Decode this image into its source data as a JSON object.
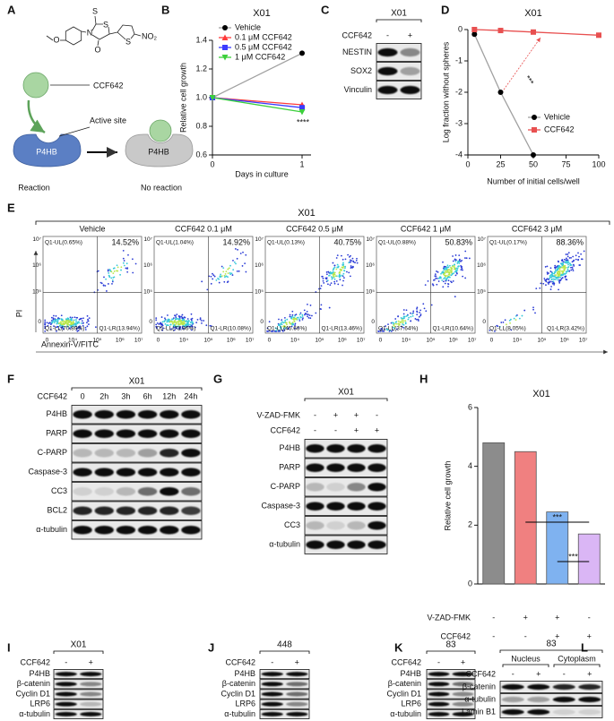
{
  "panel_labels": [
    "A",
    "B",
    "C",
    "D",
    "E",
    "F",
    "G",
    "H",
    "I",
    "J",
    "K",
    "L"
  ],
  "schematic": {
    "compound": "CCF642",
    "atoms": [
      "O",
      "N",
      "S",
      "S",
      "O",
      "S",
      "NO₂"
    ],
    "site": "Active site",
    "protein_left": "P4HB",
    "protein_right": "P4HB",
    "caption_left": "Reaction",
    "caption_right": "No reaction"
  },
  "chart_data": [
    {
      "type": "line",
      "title": "X01",
      "x_label": "Days in culture",
      "y_label": "Relative cell growth",
      "x": [
        0,
        1
      ],
      "xlim": [
        0,
        1.1
      ],
      "xticks": [
        0,
        1
      ],
      "ylim": [
        0.6,
        1.4
      ],
      "yticks": [
        0.6,
        0.8,
        {
          "value": 1,
          "label": "1.0"
        },
        1.2,
        1.4
      ],
      "legend": "upper left",
      "annotation": "****",
      "series": [
        {
          "name": "Vehicle",
          "color": "#000000",
          "line_color": "#a0a0a0",
          "marker": "circle",
          "values": [
            1,
            1.31
          ]
        },
        {
          "name": "0.1 μM CCF642",
          "color": "#ff3b3b",
          "marker": "triangle",
          "values": [
            1,
            0.95
          ]
        },
        {
          "name": "0.5 μM CCF642",
          "color": "#3b3bff",
          "marker": "square",
          "values": [
            1,
            0.93
          ]
        },
        {
          "name": "1 μM CCF642",
          "color": "#3ccf3c",
          "marker": "triangle-down",
          "values": [
            1,
            0.9
          ]
        }
      ]
    },
    {
      "type": "line",
      "title": "X01",
      "x_label": "Number of initial cells/well",
      "y_label": "Log fraction without spheres",
      "xlim": [
        0,
        100
      ],
      "xticks": [
        0,
        25,
        50,
        75,
        100
      ],
      "ylim": [
        -4,
        0
      ],
      "yticks": [
        -4,
        -3,
        -2,
        -1,
        0
      ],
      "legend": "lower right",
      "annotation": "***",
      "series": [
        {
          "name": "Vehicle",
          "color": "#000000",
          "line_color": "#a0a0a0",
          "marker": "circle",
          "x": [
            5,
            25,
            50
          ],
          "values": [
            -0.15,
            -2,
            -4
          ]
        },
        {
          "name": "CCF642",
          "color": "#e85050",
          "marker": "square",
          "x": [
            5,
            25,
            50,
            100
          ],
          "values": [
            0,
            -0.03,
            -0.08,
            -0.18
          ]
        }
      ]
    },
    {
      "type": "bar",
      "title": "X01",
      "y_label": "Relative cell growth",
      "categories": [
        null,
        null,
        null,
        null
      ],
      "values": [
        4.8,
        4.5,
        2.45,
        1.7
      ],
      "colors": [
        "#8c8c8c",
        "#f08080",
        "#7fb2f0",
        "#dab6f5"
      ],
      "ylim": [
        0,
        6
      ],
      "yticks": [
        0,
        2,
        4,
        6
      ],
      "conditions": [
        {
          "name": "V-ZAD-FMK",
          "marks": [
            "-",
            "+",
            "+",
            "-"
          ]
        },
        {
          "name": "CCF642",
          "marks": [
            "-",
            "-",
            "+",
            "+"
          ]
        }
      ],
      "annotations": [
        "***",
        "***"
      ]
    }
  ],
  "flow": {
    "title": "X01",
    "y_label": "PI",
    "x_label": "Annexin-V/FITC",
    "y_ticks": [
      "10⁷",
      "10⁶",
      "10⁵",
      "0"
    ],
    "x_ticks": [
      "0",
      "10⁴",
      "10⁵",
      "10⁶",
      "10⁷"
    ],
    "plots": [
      {
        "title": "Vehicle",
        "ul": "Q1-UL(0.65%)",
        "ur": "14.52%",
        "ll": "Q1-LL(70.89%)",
        "lr": "Q1-LR(13.94%)"
      },
      {
        "title": "CCF642 0.1 μM",
        "ul": "Q1-UL(1.04%)",
        "ur": "14.92%",
        "ll": "Q1-LL(73.96%)",
        "lr": "Q1-LR(10.08%)"
      },
      {
        "title": "CCF642 0.5 μM",
        "ul": "Q1-UL(0.13%)",
        "ur": "40.75%",
        "ll": "Q1-LL(45.66%)",
        "lr": "Q1-LR(13.46%)"
      },
      {
        "title": "CCF642 1 μM",
        "ul": "Q1-UL(0.88%)",
        "ur": "50.83%",
        "ll": "Q1-LL(37.64%)",
        "lr": "Q1-LR(10.64%)"
      },
      {
        "title": "CCF642 3 μM",
        "ul": "Q1-UL(0.17%)",
        "ur": "88.36%",
        "ll": "Q1-LL(8.05%)",
        "lr": "Q1-LR(3.42%)"
      }
    ]
  },
  "blots": {
    "C": {
      "header": "X01",
      "treatments": [
        {
          "name": "CCF642",
          "marks": [
            "-",
            "+"
          ]
        }
      ],
      "rows": [
        "NESTIN",
        "SOX2",
        "Vinculin"
      ]
    },
    "F": {
      "header": "X01",
      "treatments": [
        {
          "name": "CCF642",
          "marks": [
            "0",
            "2h",
            "3h",
            "6h",
            "12h",
            "24h"
          ]
        }
      ],
      "rows": [
        "P4HB",
        "PARP",
        "C-PARP",
        "Caspase-3",
        "CC3",
        "BCL2",
        "α-tubulin"
      ]
    },
    "G": {
      "header": "X01",
      "treatments": [
        {
          "name": "V-ZAD-FMK",
          "marks": [
            "-",
            "+",
            "+",
            "-"
          ]
        },
        {
          "name": "CCF642",
          "marks": [
            "-",
            "-",
            "+",
            "+"
          ]
        }
      ],
      "rows": [
        "P4HB",
        "PARP",
        "C-PARP",
        "Caspase-3",
        "CC3",
        "α-tubulin"
      ]
    },
    "I": {
      "header": "X01",
      "treatments": [
        {
          "name": "CCF642",
          "marks": [
            "-",
            "+"
          ]
        }
      ],
      "rows": [
        "P4HB",
        "β-catenin",
        "Cyclin D1",
        "LRP6",
        "α-tubulin"
      ]
    },
    "J": {
      "header": "448",
      "treatments": [
        {
          "name": "CCF642",
          "marks": [
            "-",
            "+"
          ]
        }
      ],
      "rows": [
        "P4HB",
        "β-catenin",
        "Cyclin D1",
        "LRP6",
        "α-tubulin"
      ]
    },
    "K": {
      "header": "83",
      "treatments": [
        {
          "name": "CCF642",
          "marks": [
            "-",
            "+"
          ]
        }
      ],
      "rows": [
        "P4HB",
        "β-catenin",
        "Cyclin D1",
        "LRP6",
        "α-tubulin"
      ]
    },
    "L": {
      "header": "83",
      "groups": [
        "Nucleus",
        "Cytoplasm"
      ],
      "treatments": [
        {
          "name": "CCF642",
          "marks": [
            "-",
            "+",
            "-",
            "+"
          ]
        }
      ],
      "rows": [
        "β-catenin",
        "α-tubulin",
        "Lamin B1"
      ]
    }
  }
}
